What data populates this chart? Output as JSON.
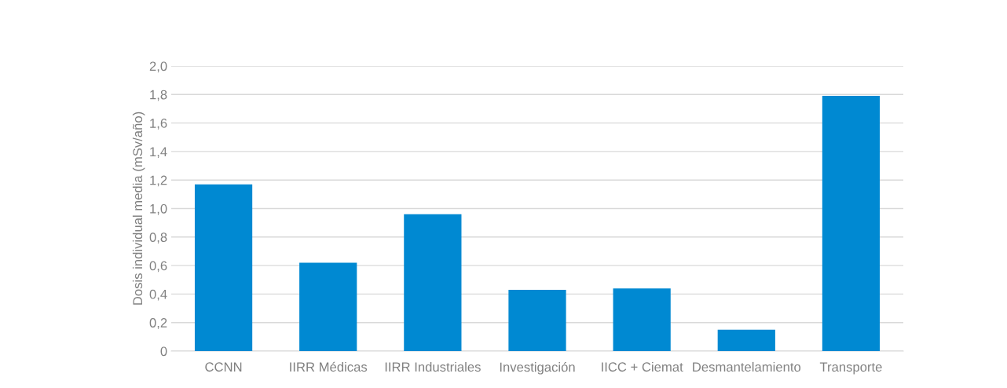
{
  "chart_data": {
    "type": "bar",
    "ylabel": "Dosis individual media (mSv/año)",
    "categories": [
      "CCNN",
      "IIRR Médicas",
      "IIRR Industriales",
      "Investigación",
      "IICC + Ciemat",
      "Desmantelamiento",
      "Transporte"
    ],
    "values": [
      1.17,
      0.62,
      0.96,
      0.43,
      0.44,
      0.15,
      1.79
    ],
    "color": "#0089d2",
    "ylim": [
      0,
      2.0
    ],
    "yticks": [
      {
        "value": 0,
        "label": "0"
      },
      {
        "value": 0.2,
        "label": "0,2"
      },
      {
        "value": 0.4,
        "label": "0,4"
      },
      {
        "value": 0.6,
        "label": "0,6"
      },
      {
        "value": 0.8,
        "label": "0,8"
      },
      {
        "value": 1.0,
        "label": "1,0"
      },
      {
        "value": 1.2,
        "label": "1,2"
      },
      {
        "value": 1.4,
        "label": "1,4"
      },
      {
        "value": 1.6,
        "label": "1,6"
      },
      {
        "value": 1.8,
        "label": "1,8"
      },
      {
        "value": 2.0,
        "label": "2,0"
      }
    ],
    "grid": "y"
  }
}
